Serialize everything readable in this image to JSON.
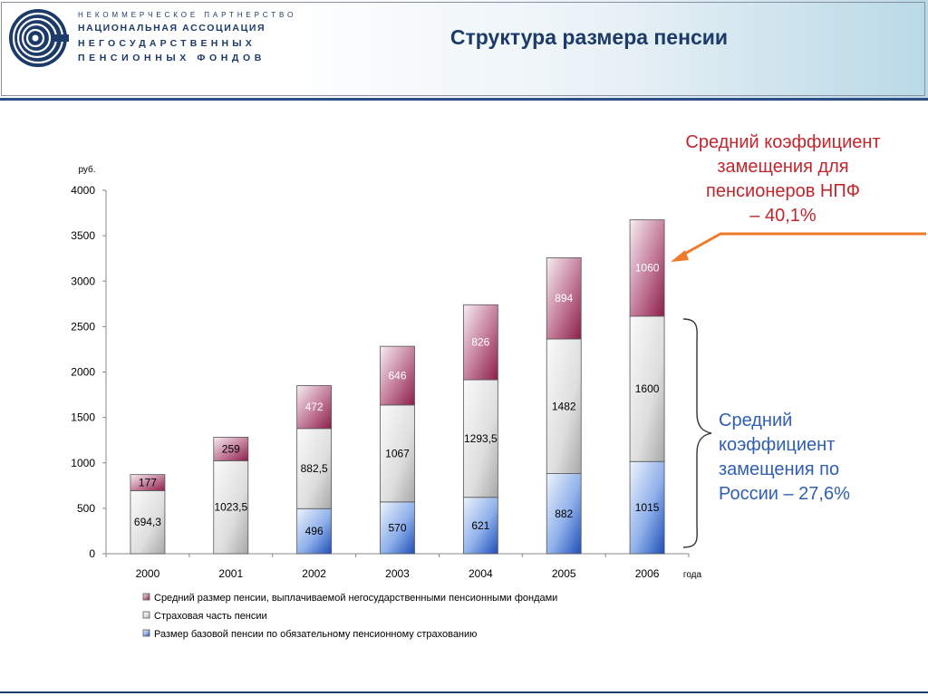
{
  "header": {
    "org_line1": "НЕКОММЕРЧЕСКОЕ ПАРТНЕРСТВО",
    "org_line2": "НАЦИОНАЛЬНАЯ АССОЦИАЦИЯ",
    "org_line3": "НЕГОСУДАРСТВЕННЫХ",
    "org_line4": "ПЕНСИОННЫХ ФОНДОВ",
    "title": "Структура размера пенсии"
  },
  "callouts": {
    "npf_line1": "Средний коэффициент",
    "npf_line2": "замещения для",
    "npf_line3": "пенсионеров НПФ",
    "npf_line4": "– 40,1%",
    "ru_line1": "Средний",
    "ru_line2": "коэффициент",
    "ru_line3": "замещения по",
    "ru_line4": "России – 27,6%"
  },
  "colors": {
    "npf": "#a33a66",
    "insurance": "#c9c9c9",
    "base": "#2f62c8",
    "arrow": "#ef7a2a",
    "title": "#1c3b68"
  },
  "chart_data": {
    "type": "bar",
    "stacked": true,
    "categories": [
      "2000",
      "2001",
      "2002",
      "2003",
      "2004",
      "2005",
      "2006"
    ],
    "series": [
      {
        "name": "Размер базовой пенсии по обязательному пенсионному страхованию",
        "key": "base",
        "values": [
          0,
          0,
          496,
          570,
          621,
          882,
          1015
        ],
        "labels": [
          "",
          "",
          "496",
          "570",
          "621",
          "882",
          "1015"
        ]
      },
      {
        "name": "Страховая часть пенсии",
        "key": "insurance",
        "values": [
          694.3,
          1023.5,
          882.5,
          1067,
          1293.5,
          1482,
          1600
        ],
        "labels": [
          "694,3",
          "1023,5",
          "882,5",
          "1067",
          "1293,5",
          "1482",
          "1600"
        ]
      },
      {
        "name": "Средний размер пенсии, выплачиваемой негосударственными пенсионными фондами",
        "key": "npf",
        "values": [
          177,
          259,
          472,
          646,
          826,
          894,
          1060
        ],
        "labels": [
          "177",
          "259",
          "472",
          "646",
          "826",
          "894",
          "1060"
        ]
      }
    ],
    "legend_order": [
      "npf",
      "insurance",
      "base"
    ],
    "ylabel": "руб.",
    "xlabel": "года",
    "ylim": [
      0,
      4000
    ],
    "yticks": [
      0,
      500,
      1000,
      1500,
      2000,
      2500,
      3000,
      3500,
      4000
    ],
    "grid": false,
    "legend_position": "bottom"
  }
}
